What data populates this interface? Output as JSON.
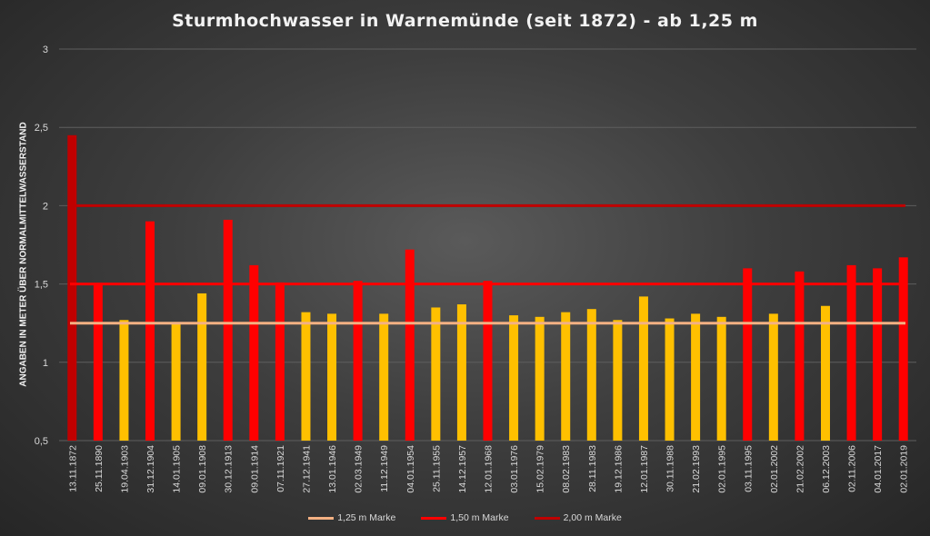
{
  "chart_data": {
    "type": "bar",
    "title": "Sturmhochwasser in Warnemünde (seit 1872) - ab 1,25 m",
    "ylabel": "ANGABEN IN METER ÜBER NORMALMITTELWASSERSTAND",
    "ylim": [
      0.5,
      3
    ],
    "yticks": [
      "0,5",
      "1",
      "1,5",
      "2",
      "2,5",
      "3"
    ],
    "grid": true,
    "legend_position": "bottom",
    "categories": [
      "13.11.1872",
      "25.11.1890",
      "19.04.1903",
      "31.12.1904",
      "14.01.1905",
      "09.01.1908",
      "30.12.1913",
      "09.01.1914",
      "07.11.1921",
      "27.12.1941",
      "13.01.1946",
      "02.03.1949",
      "11.12.1949",
      "04.01.1954",
      "25.11.1955",
      "14.12.1957",
      "12.01.1968",
      "03.01.1976",
      "15.02.1979",
      "08.02.1983",
      "28.11.1983",
      "19.12.1986",
      "12.01.1987",
      "30.11.1988",
      "21.02.1993",
      "02.01.1995",
      "03.11.1995",
      "02.01.2002",
      "21.02.2002",
      "06.12.2003",
      "02.11.2006",
      "04.01.2017",
      "02.01.2019"
    ],
    "values": [
      2.45,
      1.5,
      1.27,
      1.9,
      1.25,
      1.44,
      1.91,
      1.62,
      1.51,
      1.32,
      1.31,
      1.52,
      1.31,
      1.72,
      1.35,
      1.37,
      1.52,
      1.3,
      1.29,
      1.32,
      1.34,
      1.27,
      1.42,
      1.28,
      1.31,
      1.29,
      1.6,
      1.31,
      1.58,
      1.36,
      1.62,
      1.6,
      1.67
    ],
    "bar_colors": {
      "above_2_00": "#c00000",
      "above_1_50": "#ff0000",
      "below_1_50": "#ffc000"
    },
    "reference_lines": [
      {
        "name": "1,25 m Marke",
        "value": 1.25,
        "color": "#f4b183"
      },
      {
        "name": "1,50 m Marke",
        "value": 1.5,
        "color": "#ff0000"
      },
      {
        "name": "2,00 m Marke",
        "value": 2.0,
        "color": "#c00000"
      }
    ]
  }
}
